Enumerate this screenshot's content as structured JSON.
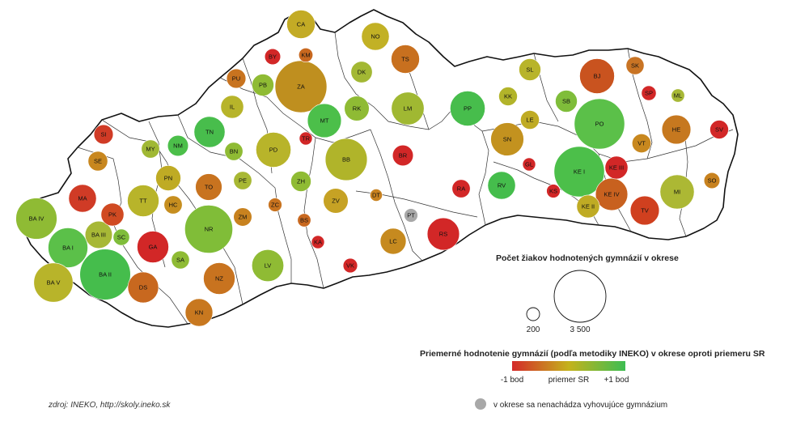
{
  "source": "zdroj: INEKO, http://skoly.ineko.sk",
  "legend": {
    "size_title": "Počet žiakov hodnotených gymnázií v okrese",
    "size_small": "200",
    "size_large": "3 500",
    "color_title": "Priemerné hodnotenie gymnázií (podľa metodiky INEKO) v okrese oproti priemeru SR",
    "color_low": "-1 bod",
    "color_mid": "priemer SR",
    "color_high": "+1 bod",
    "gray_note": "v okrese sa nenachádza vyhovujúce gymnázium",
    "colors": {
      "low": "#d42a2a",
      "mid": "#c4b21c",
      "high": "#3dbd52",
      "gray": "#a8a8a8"
    }
  },
  "districts": [
    {
      "code": "CA",
      "color": "#c3ab25",
      "size": 1050
    },
    {
      "code": "NO",
      "color": "#c2b125",
      "size": 1000
    },
    {
      "code": "BY",
      "color": "#d22727",
      "size": 330
    },
    {
      "code": "KM",
      "color": "#c8681f",
      "size": 260
    },
    {
      "code": "TS",
      "color": "#c8701f",
      "size": 1050
    },
    {
      "code": "PU",
      "color": "#c8731f",
      "size": 480
    },
    {
      "code": "PB",
      "color": "#8fbb34",
      "size": 620
    },
    {
      "code": "ZA",
      "color": "#bf8f1f",
      "size": 3500
    },
    {
      "code": "DK",
      "color": "#a3b834",
      "size": 600
    },
    {
      "code": "SL",
      "color": "#b8b42a",
      "size": 620
    },
    {
      "code": "BJ",
      "color": "#c9531f",
      "size": 1580
    },
    {
      "code": "SK",
      "color": "#c97424",
      "size": 420
    },
    {
      "code": "SP",
      "color": "#d22727",
      "size": 280
    },
    {
      "code": "ML",
      "color": "#a7b836",
      "size": 230
    },
    {
      "code": "IL",
      "color": "#b7b42a",
      "size": 680
    },
    {
      "code": "RK",
      "color": "#8fbb34",
      "size": 800
    },
    {
      "code": "LM",
      "color": "#a0b832",
      "size": 1400
    },
    {
      "code": "PP",
      "color": "#47bd4c",
      "size": 1600
    },
    {
      "code": "KK",
      "color": "#b2b42a",
      "size": 450
    },
    {
      "code": "SB",
      "color": "#7fbd3a",
      "size": 620
    },
    {
      "code": "PO",
      "color": "#5bc049",
      "size": 3300
    },
    {
      "code": "LE",
      "color": "#bfab24",
      "size": 460
    },
    {
      "code": "SI",
      "color": "#d03b26",
      "size": 480
    },
    {
      "code": "MT",
      "color": "#4cbf4a",
      "size": 1500
    },
    {
      "code": "TN",
      "color": "#48bd4c",
      "size": 1250
    },
    {
      "code": "TR",
      "color": "#d22727",
      "size": 220
    },
    {
      "code": "HE",
      "color": "#c6781f",
      "size": 1100
    },
    {
      "code": "SV",
      "color": "#d22727",
      "size": 450
    },
    {
      "code": "SE",
      "color": "#c8871f",
      "size": 500
    },
    {
      "code": "MY",
      "color": "#a0b834",
      "size": 430
    },
    {
      "code": "NM",
      "color": "#4cbf4a",
      "size": 560
    },
    {
      "code": "BN",
      "color": "#8fbb34",
      "size": 430
    },
    {
      "code": "PD",
      "color": "#b8b42a",
      "size": 1600
    },
    {
      "code": "BB",
      "color": "#b0b42a",
      "size": 2300
    },
    {
      "code": "BR",
      "color": "#d22727",
      "size": 560
    },
    {
      "code": "SN",
      "color": "#c3921f",
      "size": 1420
    },
    {
      "code": "VT",
      "color": "#c8881f",
      "size": 470
    },
    {
      "code": "GL",
      "color": "#d22727",
      "size": 220
    },
    {
      "code": "KE I",
      "color": "#4cbf4a",
      "size": 3300
    },
    {
      "code": "KE III",
      "color": "#d22727",
      "size": 680
    },
    {
      "code": "PN",
      "color": "#bfab24",
      "size": 820
    },
    {
      "code": "PE",
      "color": "#a8b834",
      "size": 430
    },
    {
      "code": "ZH",
      "color": "#8fbb34",
      "size": 530
    },
    {
      "code": "MI",
      "color": "#acb834",
      "size": 1520
    },
    {
      "code": "SO",
      "color": "#c8821f",
      "size": 330
    },
    {
      "code": "MA",
      "color": "#d03b26",
      "size": 1000
    },
    {
      "code": "TT",
      "color": "#b8b42a",
      "size": 1300
    },
    {
      "code": "TO",
      "color": "#c8731f",
      "size": 920
    },
    {
      "code": "HC",
      "color": "#c68e1f",
      "size": 430
    },
    {
      "code": "ZV",
      "color": "#c6a224",
      "size": 800
    },
    {
      "code": "DT",
      "color": "#c8821f",
      "size": 200
    },
    {
      "code": "RA",
      "color": "#d22727",
      "size": 430
    },
    {
      "code": "RV",
      "color": "#45bd4c",
      "size": 1000
    },
    {
      "code": "KS",
      "color": "#d22727",
      "size": 240
    },
    {
      "code": "KE IV",
      "color": "#c8611f",
      "size": 1350
    },
    {
      "code": "KE II",
      "color": "#bfab24",
      "size": 680
    },
    {
      "code": "TV",
      "color": "#d0401f",
      "size": 1100
    },
    {
      "code": "BA IV",
      "color": "#8fbb34",
      "size": 2200
    },
    {
      "code": "PK",
      "color": "#d04a22",
      "size": 680
    },
    {
      "code": "NR",
      "color": "#80bd38",
      "size": 3000
    },
    {
      "code": "ZM",
      "color": "#c8821f",
      "size": 440
    },
    {
      "code": "ZC",
      "color": "#c8731f",
      "size": 240
    },
    {
      "code": "PT",
      "color": "#a8a8a8",
      "size": 240
    },
    {
      "code": "BA III",
      "color": "#a7b836",
      "size": 960
    },
    {
      "code": "SC",
      "color": "#7fbd3a",
      "size": 350
    },
    {
      "code": "BS",
      "color": "#c8681f",
      "size": 230
    },
    {
      "code": "BA I",
      "color": "#5bc049",
      "size": 2050
    },
    {
      "code": "GA",
      "color": "#d22727",
      "size": 1300
    },
    {
      "code": "RS",
      "color": "#d22727",
      "size": 1350
    },
    {
      "code": "KA",
      "color": "#d22727",
      "size": 220
    },
    {
      "code": "LC",
      "color": "#c68a1f",
      "size": 870
    },
    {
      "code": "SA",
      "color": "#8fbb34",
      "size": 420
    },
    {
      "code": "LV",
      "color": "#8fbb34",
      "size": 1320
    },
    {
      "code": "BA V",
      "color": "#b8b42a",
      "size": 2000
    },
    {
      "code": "BA II",
      "color": "#45bd4c",
      "size": 3350
    },
    {
      "code": "VK",
      "color": "#d22727",
      "size": 270
    },
    {
      "code": "NZ",
      "color": "#c8731f",
      "size": 1300
    },
    {
      "code": "DS",
      "color": "#c8681f",
      "size": 1230
    },
    {
      "code": "KN",
      "color": "#c8781f",
      "size": 990
    }
  ]
}
